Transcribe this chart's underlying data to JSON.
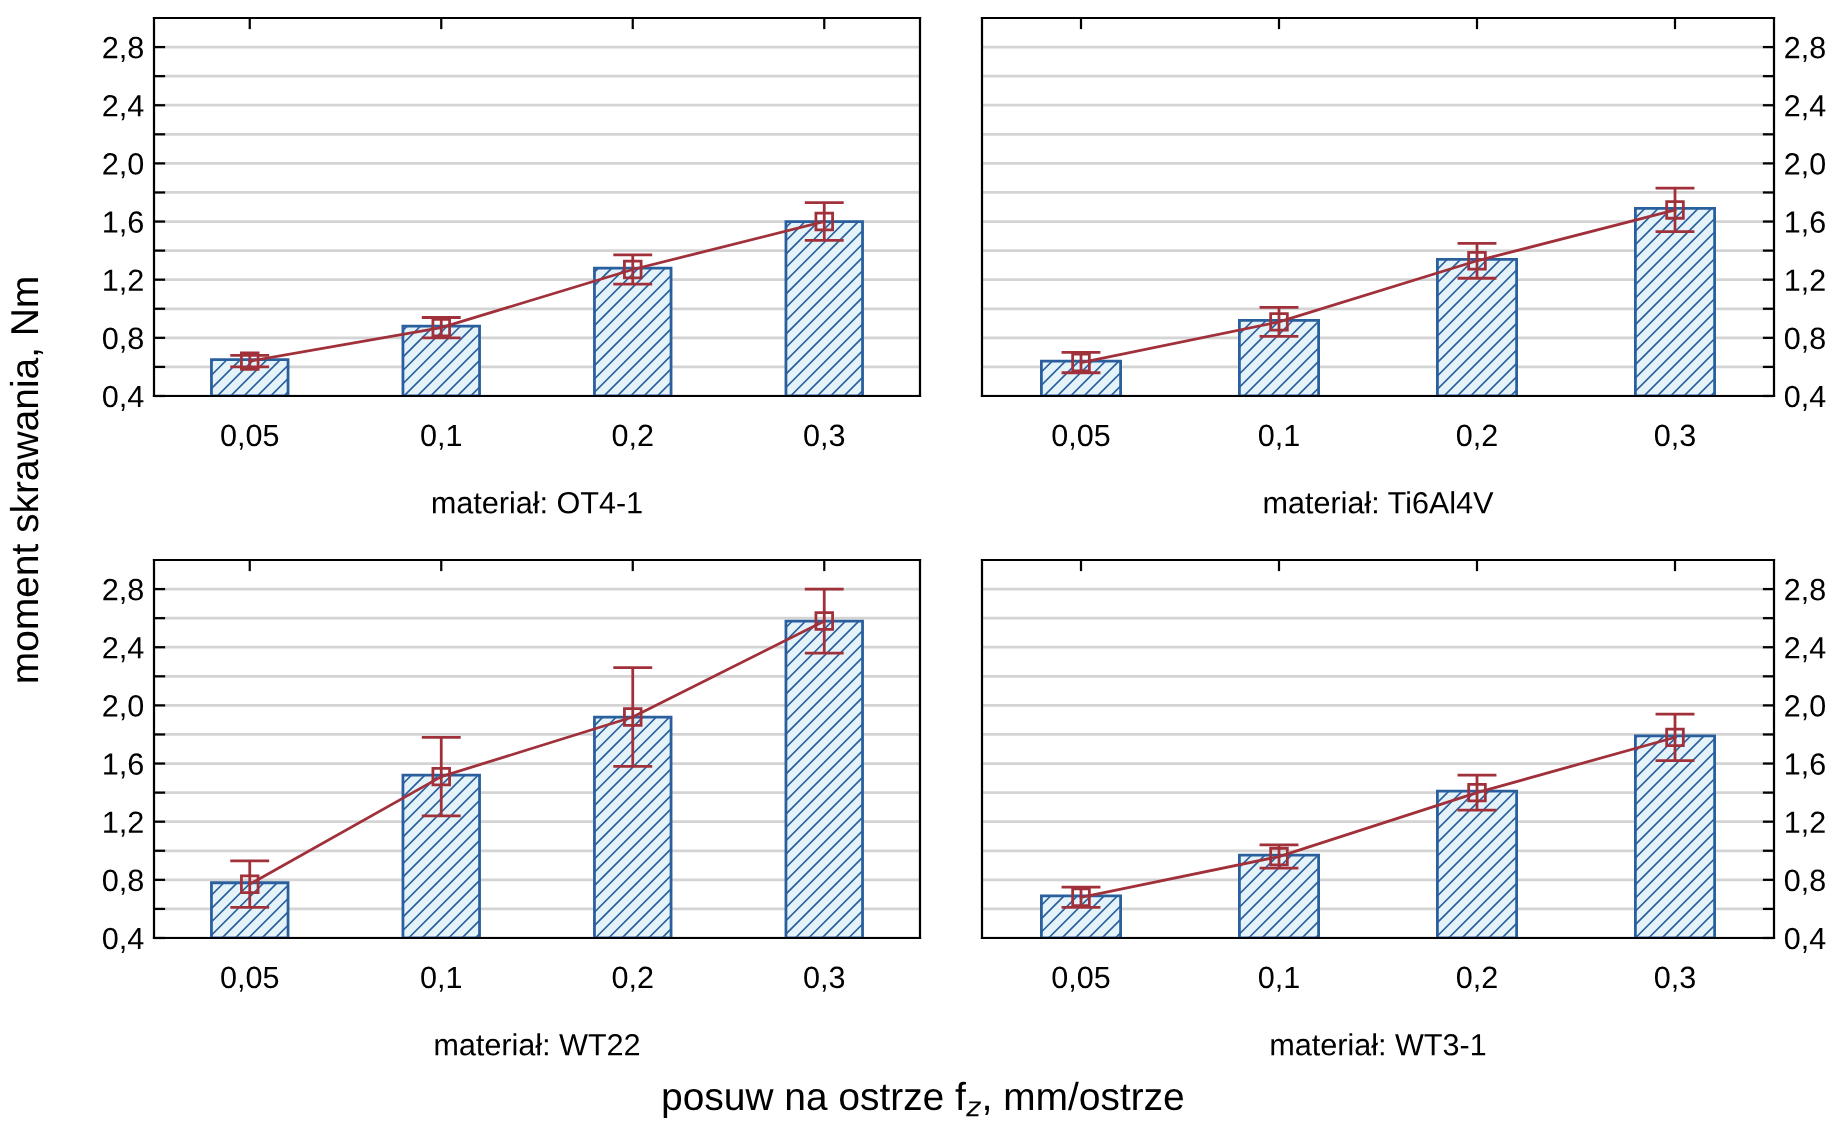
{
  "chart_data": [
    {
      "type": "bar",
      "xlabel": "materiał: OT4-1",
      "ylabel": "moment skrawania, Nm",
      "categories": [
        "0,05",
        "0,1",
        "0,2",
        "0,3"
      ],
      "series": [
        {
          "color": "#2a5f9e",
          "values": [
            0.65,
            0.88,
            1.28,
            1.6
          ]
        },
        {
          "type": "line",
          "color": "#a0303a",
          "values": [
            0.64,
            0.87,
            1.27,
            1.6
          ],
          "errors": [
            0.04,
            0.07,
            0.1,
            0.13
          ]
        }
      ],
      "ylim": [
        0.4,
        3.0
      ],
      "yticks": [
        {
          "value": 0.4,
          "label": "0,4"
        },
        {
          "value": 0.6,
          "label": null
        },
        {
          "value": 0.8,
          "label": "0,8"
        },
        {
          "value": 1.0,
          "label": null
        },
        {
          "value": 1.2,
          "label": "1,2"
        },
        {
          "value": 1.4,
          "label": null
        },
        {
          "value": 1.6,
          "label": "1,6"
        },
        {
          "value": 1.8,
          "label": null
        },
        {
          "value": 2.0,
          "label": "2,0"
        },
        {
          "value": 2.2,
          "label": null
        },
        {
          "value": 2.4,
          "label": "2,4"
        },
        {
          "value": 2.6,
          "label": null
        },
        {
          "value": 2.8,
          "label": "2,8"
        }
      ],
      "grid": "y",
      "marker": "square",
      "line_style": "solid"
    },
    {
      "type": "bar",
      "xlabel": "materiał: Ti6Al4V",
      "categories": [
        "0,05",
        "0,1",
        "0,2",
        "0,3"
      ],
      "series": [
        {
          "color": "#2a5f9e",
          "values": [
            0.64,
            0.92,
            1.34,
            1.69
          ]
        },
        {
          "type": "line",
          "color": "#a0303a",
          "values": [
            0.63,
            0.91,
            1.33,
            1.68
          ],
          "errors": [
            0.07,
            0.1,
            0.12,
            0.15
          ]
        }
      ],
      "ylim": [
        0.4,
        3.0
      ],
      "yticks": [
        {
          "value": 0.4,
          "label": "0,4"
        },
        {
          "value": 0.6,
          "label": null
        },
        {
          "value": 0.8,
          "label": "0,8"
        },
        {
          "value": 1.0,
          "label": null
        },
        {
          "value": 1.2,
          "label": "1,2"
        },
        {
          "value": 1.4,
          "label": null
        },
        {
          "value": 1.6,
          "label": "1,6"
        },
        {
          "value": 1.8,
          "label": null
        },
        {
          "value": 2.0,
          "label": "2,0"
        },
        {
          "value": 2.2,
          "label": null
        },
        {
          "value": 2.4,
          "label": "2,4"
        },
        {
          "value": 2.6,
          "label": null
        },
        {
          "value": 2.8,
          "label": "2,8"
        }
      ],
      "grid": "y",
      "marker": "square",
      "line_style": "solid"
    },
    {
      "type": "bar",
      "xlabel": "materiał: WT22",
      "annotations": [
        "posuw na ostrze f$_{z}$, mm/ostrze"
      ],
      "categories": [
        "0,05",
        "0,1",
        "0,2",
        "0,3"
      ],
      "series": [
        {
          "color": "#2a5f9e",
          "values": [
            0.78,
            1.52,
            1.92,
            2.58
          ]
        },
        {
          "type": "line",
          "color": "#a0303a",
          "values": [
            0.77,
            1.51,
            1.92,
            2.58
          ],
          "errors": [
            0.16,
            0.27,
            0.34,
            0.22
          ]
        }
      ],
      "ylim": [
        0.4,
        3.0
      ],
      "yticks": [
        {
          "value": 0.4,
          "label": "0,4"
        },
        {
          "value": 0.6,
          "label": null
        },
        {
          "value": 0.8,
          "label": "0,8"
        },
        {
          "value": 1.0,
          "label": null
        },
        {
          "value": 1.2,
          "label": "1,2"
        },
        {
          "value": 1.4,
          "label": null
        },
        {
          "value": 1.6,
          "label": "1,6"
        },
        {
          "value": 1.8,
          "label": null
        },
        {
          "value": 2.0,
          "label": "2,0"
        },
        {
          "value": 2.2,
          "label": null
        },
        {
          "value": 2.4,
          "label": "2,4"
        },
        {
          "value": 2.6,
          "label": null
        },
        {
          "value": 2.8,
          "label": "2,8"
        }
      ],
      "grid": "y",
      "marker": "square",
      "line_style": "solid"
    },
    {
      "type": "bar",
      "xlabel": "materiał: WT3-1",
      "categories": [
        "0,05",
        "0,1",
        "0,2",
        "0,3"
      ],
      "series": [
        {
          "color": "#2a5f9e",
          "values": [
            0.69,
            0.97,
            1.41,
            1.79
          ]
        },
        {
          "type": "line",
          "color": "#a0303a",
          "values": [
            0.68,
            0.96,
            1.4,
            1.78
          ],
          "errors": [
            0.07,
            0.08,
            0.12,
            0.16
          ]
        }
      ],
      "ylim": [
        0.4,
        3.0
      ],
      "yticks": [
        {
          "value": 0.4,
          "label": "0,4"
        },
        {
          "value": 0.6,
          "label": null
        },
        {
          "value": 0.8,
          "label": "0,8"
        },
        {
          "value": 1.0,
          "label": null
        },
        {
          "value": 1.2,
          "label": "1,2"
        },
        {
          "value": 1.4,
          "label": null
        },
        {
          "value": 1.6,
          "label": "1,6"
        },
        {
          "value": 1.8,
          "label": null
        },
        {
          "value": 2.0,
          "label": "2,0"
        },
        {
          "value": 2.2,
          "label": null
        },
        {
          "value": 2.4,
          "label": "2,4"
        },
        {
          "value": 2.6,
          "label": null
        },
        {
          "value": 2.8,
          "label": "2,8"
        }
      ],
      "grid": "y",
      "marker": "square",
      "line_style": "solid"
    }
  ]
}
